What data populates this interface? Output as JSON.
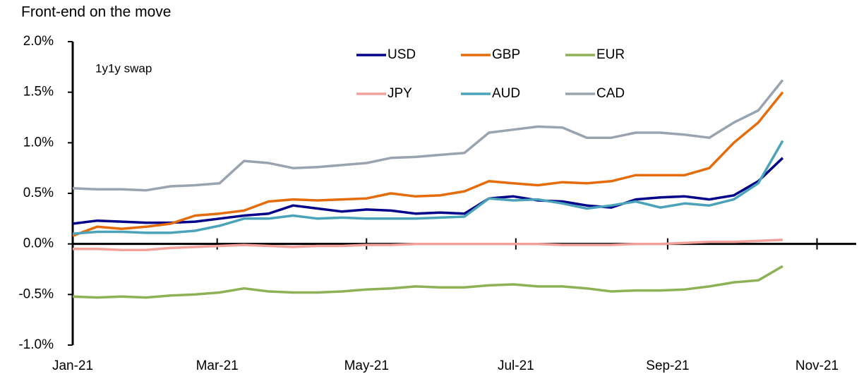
{
  "chart_data": {
    "type": "line",
    "title": "Front-end on the move",
    "annotation": "1y1y swap",
    "x": [
      0,
      10,
      20,
      30,
      40,
      50,
      60,
      70,
      80,
      90,
      100,
      110,
      120,
      130,
      140,
      150,
      160,
      170,
      180,
      190,
      200,
      210,
      220,
      230,
      240,
      250,
      260,
      270,
      280,
      290
    ],
    "series": [
      {
        "name": "USD",
        "color": "#00008b",
        "values": [
          0.2,
          0.23,
          0.22,
          0.21,
          0.21,
          0.22,
          0.25,
          0.28,
          0.3,
          0.38,
          0.35,
          0.32,
          0.34,
          0.33,
          0.3,
          0.31,
          0.3,
          0.45,
          0.47,
          0.43,
          0.42,
          0.38,
          0.36,
          0.44,
          0.46,
          0.47,
          0.44,
          0.48,
          0.62,
          0.85
        ]
      },
      {
        "name": "GBP",
        "color": "#e46c0a",
        "values": [
          0.08,
          0.17,
          0.15,
          0.17,
          0.2,
          0.28,
          0.3,
          0.33,
          0.42,
          0.44,
          0.43,
          0.44,
          0.45,
          0.5,
          0.47,
          0.48,
          0.52,
          0.62,
          0.6,
          0.58,
          0.61,
          0.6,
          0.62,
          0.68,
          0.68,
          0.68,
          0.75,
          1.0,
          1.2,
          1.5
        ]
      },
      {
        "name": "EUR",
        "color": "#8db255",
        "values": [
          -0.52,
          -0.53,
          -0.52,
          -0.53,
          -0.51,
          -0.5,
          -0.48,
          -0.44,
          -0.47,
          -0.48,
          -0.48,
          -0.47,
          -0.45,
          -0.44,
          -0.42,
          -0.43,
          -0.43,
          -0.41,
          -0.4,
          -0.42,
          -0.42,
          -0.44,
          -0.47,
          -0.46,
          -0.46,
          -0.45,
          -0.42,
          -0.38,
          -0.36,
          -0.22
        ]
      },
      {
        "name": "JPY",
        "color": "#f4a09a",
        "values": [
          -0.05,
          -0.05,
          -0.06,
          -0.06,
          -0.04,
          -0.03,
          -0.02,
          -0.01,
          -0.02,
          -0.03,
          -0.02,
          -0.02,
          -0.01,
          -0.01,
          0,
          0,
          0,
          0,
          0,
          0,
          -0.01,
          -0.01,
          -0.01,
          0,
          0,
          0.01,
          0.02,
          0.02,
          0.03,
          0.04
        ]
      },
      {
        "name": "AUD",
        "color": "#4aa3b8",
        "values": [
          0.1,
          0.12,
          0.12,
          0.11,
          0.11,
          0.13,
          0.18,
          0.25,
          0.25,
          0.28,
          0.25,
          0.26,
          0.25,
          0.25,
          0.25,
          0.26,
          0.27,
          0.45,
          0.43,
          0.44,
          0.4,
          0.35,
          0.38,
          0.42,
          0.36,
          0.4,
          0.38,
          0.44,
          0.6,
          1.02
        ]
      },
      {
        "name": "CAD",
        "color": "#9aa3b0",
        "values": [
          0.55,
          0.54,
          0.54,
          0.53,
          0.57,
          0.58,
          0.6,
          0.82,
          0.8,
          0.75,
          0.76,
          0.78,
          0.8,
          0.85,
          0.86,
          0.88,
          0.9,
          1.1,
          1.13,
          1.16,
          1.15,
          1.05,
          1.05,
          1.1,
          1.1,
          1.08,
          1.05,
          1.2,
          1.32,
          1.62
        ]
      }
    ],
    "xlim": [
      0,
      320
    ],
    "xticks": [
      {
        "value": 0,
        "label": "Jan-21"
      },
      {
        "value": 59,
        "label": "Mar-21"
      },
      {
        "value": 120,
        "label": "May-21"
      },
      {
        "value": 181,
        "label": "Jul-21"
      },
      {
        "value": 243,
        "label": "Sep-21"
      },
      {
        "value": 304,
        "label": "Nov-21"
      }
    ],
    "ylim": [
      -1,
      2
    ],
    "yticks": [
      {
        "value": -1,
        "label": "-1.0%"
      },
      {
        "value": -0.5,
        "label": "-0.5%"
      },
      {
        "value": 0,
        "label": "0.0%"
      },
      {
        "value": 0.5,
        "label": "0.5%"
      },
      {
        "value": 1,
        "label": "1.0%"
      },
      {
        "value": 1.5,
        "label": "1.5%"
      },
      {
        "value": 2,
        "label": "2.0%"
      }
    ],
    "legend": "top"
  }
}
